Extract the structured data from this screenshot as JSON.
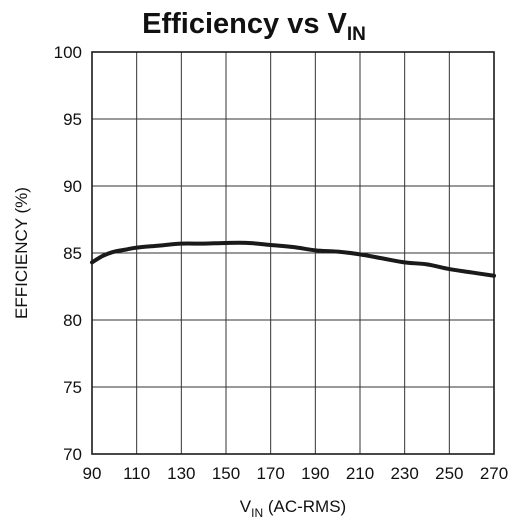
{
  "chart_data": {
    "type": "line",
    "title": {
      "main": "Efficiency vs V",
      "sub": "IN"
    },
    "xlabel": {
      "main": "V",
      "sub": "IN",
      "rest": " (AC-RMS)"
    },
    "ylabel": "EFFICIENCY (%)",
    "xlim": [
      90,
      270
    ],
    "ylim": [
      70,
      100
    ],
    "xticks": [
      90,
      110,
      130,
      150,
      170,
      190,
      210,
      230,
      250,
      270
    ],
    "yticks": [
      70,
      75,
      80,
      85,
      90,
      95,
      100
    ],
    "grid": true,
    "legend": "none",
    "line_color": "#1a1a1a",
    "series": [
      {
        "x": [
          90,
          95,
          100,
          105,
          110,
          120,
          130,
          140,
          150,
          160,
          170,
          180,
          190,
          200,
          210,
          220,
          230,
          240,
          250,
          260,
          270
        ],
        "y": [
          84.3,
          84.8,
          85.1,
          85.25,
          85.4,
          85.55,
          85.7,
          85.7,
          85.75,
          85.75,
          85.6,
          85.45,
          85.2,
          85.1,
          84.9,
          84.6,
          84.3,
          84.15,
          83.8,
          83.55,
          83.3
        ]
      }
    ]
  }
}
